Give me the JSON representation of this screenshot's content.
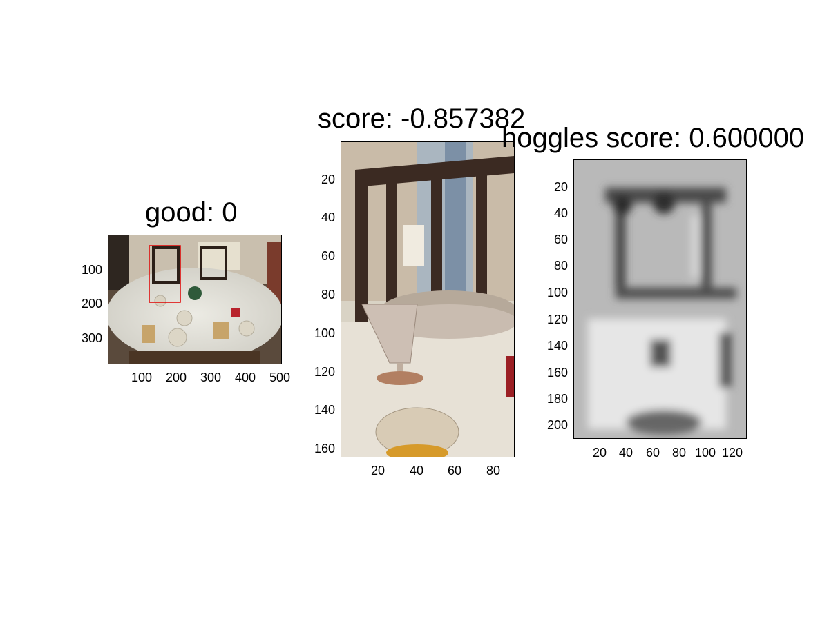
{
  "panels": [
    {
      "id": "full-image",
      "title": "good: 0",
      "image_desc": "dining table with chairs and place settings",
      "box_color": "#e00000",
      "yticks": [
        "100",
        "200",
        "300"
      ],
      "xticks": [
        "100",
        "200",
        "300",
        "400",
        "500"
      ]
    },
    {
      "id": "crop",
      "title": "score: -0.857382",
      "image_desc": "crop of chair back and glassware",
      "yticks": [
        "20",
        "40",
        "60",
        "80",
        "100",
        "120",
        "140",
        "160"
      ],
      "xticks": [
        "20",
        "40",
        "60",
        "80"
      ]
    },
    {
      "id": "hoggles",
      "title": "hoggles score: 0.600000",
      "image_desc": "grayscale HOG inversion",
      "yticks": [
        "20",
        "40",
        "60",
        "80",
        "100",
        "120",
        "140",
        "160",
        "180",
        "200"
      ],
      "xticks": [
        "20",
        "40",
        "60",
        "80",
        "100",
        "120"
      ]
    }
  ]
}
